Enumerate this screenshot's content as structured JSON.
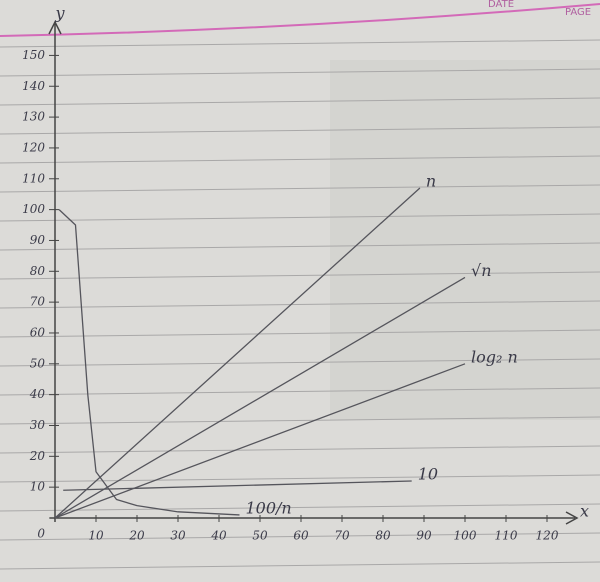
{
  "paper": {
    "date_label": "DATE",
    "page_label": "PAGE"
  },
  "chart_data": {
    "type": "line",
    "x_label": "x",
    "y_label": "y",
    "xlim": [
      0,
      130
    ],
    "ylim": [
      0,
      155
    ],
    "xticks": [
      10,
      20,
      30,
      40,
      50,
      60,
      70,
      80,
      90,
      100,
      110,
      120
    ],
    "yticks": [
      0,
      10,
      20,
      30,
      40,
      50,
      60,
      70,
      80,
      90,
      100,
      110,
      120,
      130,
      140,
      150
    ],
    "series": [
      {
        "name": "n",
        "color": "#55555c",
        "x": [
          0,
          89
        ],
        "values": [
          0,
          107
        ]
      },
      {
        "name": "√n",
        "color": "#55555c",
        "x": [
          0,
          100
        ],
        "values": [
          0,
          78
        ]
      },
      {
        "name": "log₂ n",
        "color": "#55555c",
        "x": [
          0,
          100
        ],
        "values": [
          0,
          50
        ]
      },
      {
        "name": "10",
        "color": "#55555c",
        "x": [
          2,
          87
        ],
        "values": [
          9,
          12
        ]
      },
      {
        "name": "100/n",
        "color": "#55555c",
        "x": [
          1,
          5,
          8,
          10,
          15,
          20,
          30,
          45
        ],
        "values": [
          100,
          95,
          40,
          15,
          6,
          4,
          2,
          1
        ]
      }
    ]
  }
}
